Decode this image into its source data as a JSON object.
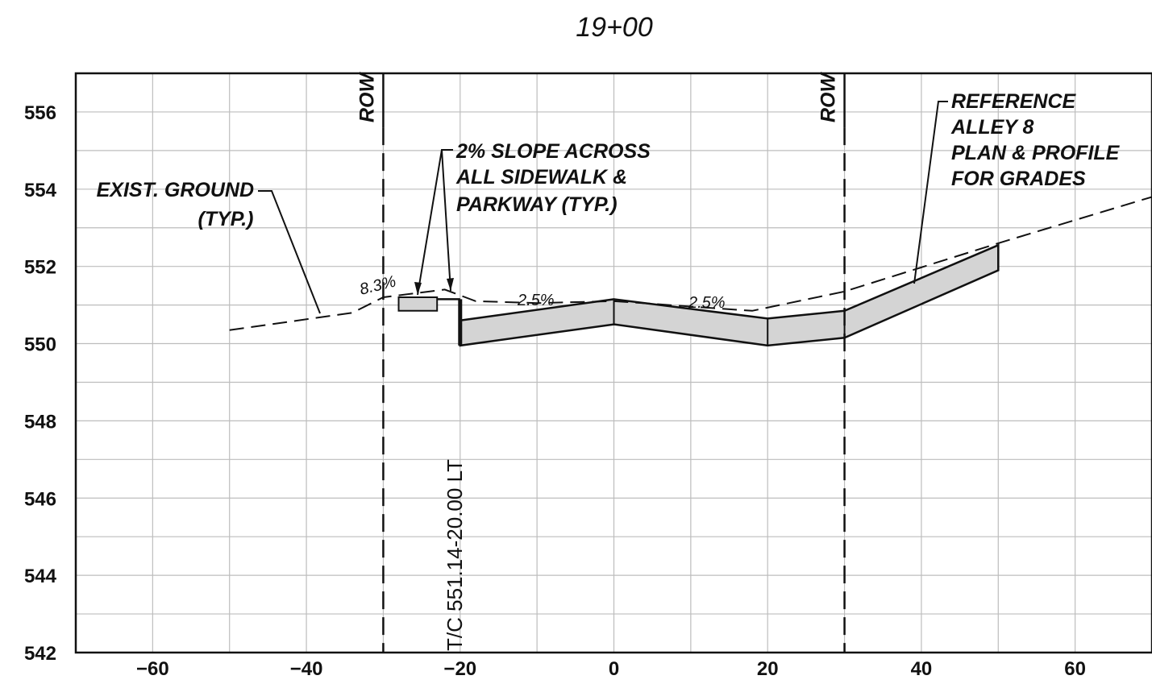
{
  "title": "19+00",
  "x_axis": {
    "ticks": [
      "-60",
      "-40",
      "-20",
      "0",
      "20",
      "40",
      "60"
    ],
    "range": [
      -70,
      70
    ]
  },
  "y_axis": {
    "ticks": [
      "556",
      "554",
      "552",
      "550",
      "548",
      "546",
      "544",
      "542"
    ],
    "range": [
      542,
      557
    ]
  },
  "row_lines": [
    {
      "station": -30,
      "label": "ROW"
    },
    {
      "station": 30,
      "label": "ROW"
    }
  ],
  "annotations": {
    "exist_ground": [
      "EXIST. GROUND",
      "(TYP.)"
    ],
    "slope_note": [
      "2% SLOPE ACROSS",
      "ALL SIDEWALK &",
      "PARKWAY (TYP.)"
    ],
    "reference_note": [
      "REFERENCE",
      "ALLEY 8",
      "PLAN & PROFILE",
      "FOR GRADES"
    ],
    "tc_label": "T/C 551.14-20.00 LT",
    "slope_left": "8.3%",
    "slope_mid_left": "2.5%",
    "slope_mid_right": "2.5%"
  },
  "profiles": {
    "existing_ground": [
      [
        -50,
        550.35
      ],
      [
        -34,
        550.8
      ],
      [
        -30,
        551.2
      ],
      [
        -22,
        551.4
      ],
      [
        -18,
        551.1
      ],
      [
        -10,
        551.05
      ],
      [
        0,
        551.1
      ],
      [
        18,
        550.85
      ],
      [
        30,
        551.35
      ],
      [
        50,
        552.6
      ],
      [
        70,
        553.8
      ]
    ],
    "proposed_top": [
      [
        -20,
        550.6
      ],
      [
        0,
        551.15
      ],
      [
        20,
        550.65
      ],
      [
        30,
        550.85
      ],
      [
        50,
        552.55
      ]
    ],
    "proposed_bottom": [
      [
        -20,
        549.95
      ],
      [
        0,
        550.5
      ],
      [
        20,
        549.95
      ],
      [
        30,
        550.15
      ],
      [
        50,
        551.9
      ]
    ],
    "sidewalk_top": [
      [
        -28,
        551.2
      ],
      [
        -23,
        551.2
      ]
    ],
    "sidewalk_bottom": [
      [
        -28,
        550.85
      ],
      [
        -23,
        550.85
      ]
    ]
  },
  "colors": {
    "fill": "#d4d4d4",
    "grid": "#bdbdbd",
    "ink": "#111111"
  }
}
